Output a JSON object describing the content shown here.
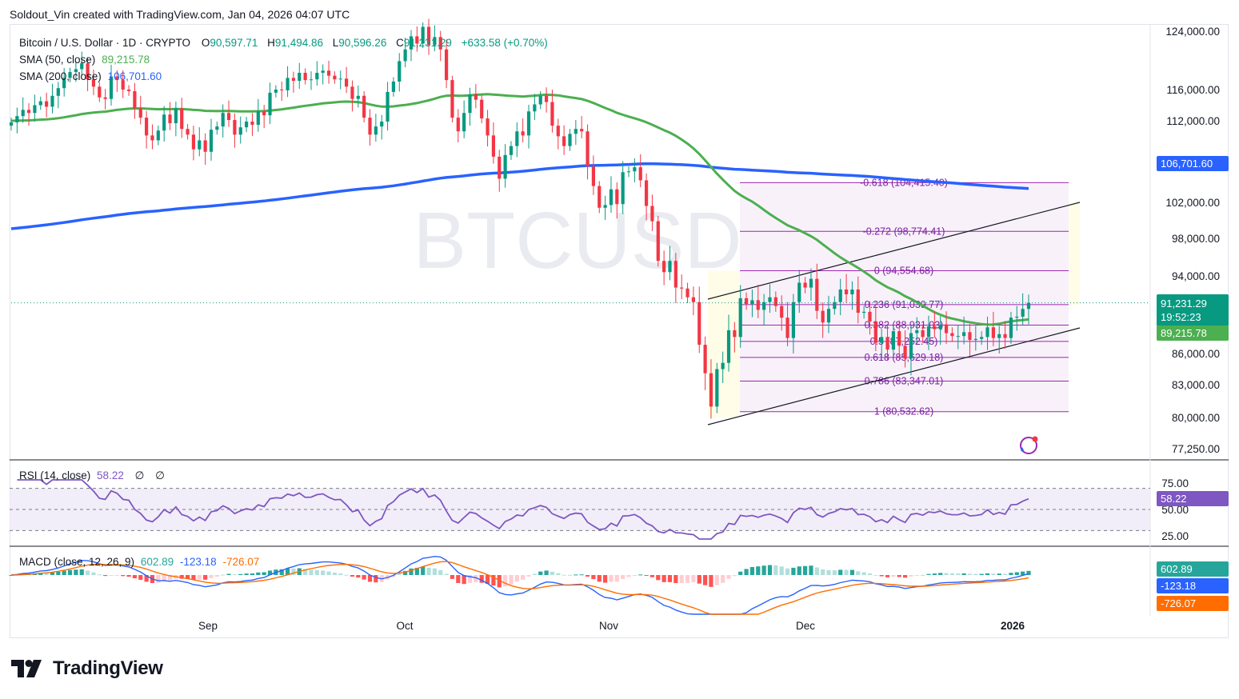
{
  "header": {
    "credit": "Soldout_Vin created with TradingView.com, Jan 04, 2026 04:07 UTC"
  },
  "footer": {
    "brand": "TradingView",
    "logo_icon": "tradingview-logo-icon"
  },
  "colors": {
    "up": "#089981",
    "down": "#f23645",
    "sma50": "#4caf50",
    "sma200": "#2962ff",
    "rsi": "#7e57c2",
    "macd": "#2962ff",
    "signal": "#ff6d00",
    "fib": "#9c27b0"
  },
  "symbol": {
    "watermark": "BTCUSD"
  },
  "legend": {
    "title": "Bitcoin / U.S. Dollar · 1D · CRYPTO",
    "o_label": "O",
    "o": "90,597.71",
    "h_label": "H",
    "h": "91,494.86",
    "l_label": "L",
    "l": "90,596.26",
    "c_label": "C",
    "c": "91,231.29",
    "change": "+633.58 (+0.70%)",
    "sma50_label": "SMA (50, close)",
    "sma50_value": "89,215.78",
    "sma200_label": "SMA (200, close)",
    "sma200_value": "106,701.60"
  },
  "rsi_legend": {
    "label": "RSI (14, close)",
    "value": "58.22",
    "extra1": "∅",
    "extra2": "∅"
  },
  "macd_legend": {
    "label": "MACD (close, 12, 26, 9)",
    "hist": "602.89",
    "macd": "-123.18",
    "signal": "-726.07"
  },
  "price_tags": {
    "sma200": "106,701.60",
    "last": "91,231.29",
    "countdown": "19:52:23",
    "sma50": "89,215.78",
    "rsi": "58.22",
    "macd_hist": "602.89",
    "macd": "-123.18",
    "signal": "-726.07"
  },
  "chart_data": {
    "type": "candlestick",
    "price_axis": [
      "124,000.00",
      "116,000.00",
      "112,000.00",
      "102,000.00",
      "98,000.00",
      "94,000.00",
      "86,000.00",
      "83,000.00",
      "80,000.00",
      "77,250.00"
    ],
    "price_axis_values": [
      124000,
      116000,
      112000,
      102000,
      98000,
      94000,
      86000,
      83000,
      80000,
      77250
    ],
    "rsi_axis": [
      "75.00",
      "50.00",
      "25.00"
    ],
    "time_axis": [
      "Sep",
      "Oct",
      "Nov",
      "Dec",
      "2026"
    ],
    "fib_levels": [
      {
        "label": "-0.618 (104,415.40)",
        "value": 104415.4
      },
      {
        "label": "-0.272 (98,774.41)",
        "value": 98774.41
      },
      {
        "label": "0 (94,554.68)",
        "value": 94554.68
      },
      {
        "label": "0.236 (91,039.77)",
        "value": 91039.77
      },
      {
        "label": "0.382 (88,931.03)",
        "value": 88931.03
      },
      {
        "label": "0.5 (87,252.45)",
        "value": 87252.45
      },
      {
        "label": "0.618 (85,629.18)",
        "value": 85629.18
      },
      {
        "label": "0.786 (83,347.01)",
        "value": 83347.01
      },
      {
        "label": "1 (80,532.62)",
        "value": 80532.62
      }
    ],
    "closes": [
      111800,
      112600,
      113400,
      113000,
      114000,
      114500,
      113800,
      115200,
      116200,
      117600,
      118400,
      118800,
      119600,
      117400,
      116400,
      115000,
      114800,
      117800,
      117300,
      116000,
      115800,
      113600,
      112400,
      110200,
      109600,
      110800,
      112800,
      111700,
      113600,
      111000,
      110300,
      108500,
      109600,
      108200,
      110900,
      111300,
      113000,
      112100,
      110300,
      111200,
      111900,
      111500,
      113200,
      112700,
      115600,
      116000,
      115900,
      117600,
      117200,
      118300,
      117300,
      117400,
      118300,
      118600,
      117900,
      117400,
      117500,
      116400,
      114800,
      115200,
      112400,
      110300,
      111300,
      111900,
      115700,
      117100,
      119900,
      121500,
      123300,
      122300,
      124600,
      122100,
      123200,
      121500,
      117300,
      112400,
      110700,
      113000,
      115400,
      114700,
      112300,
      110200,
      107600,
      104900,
      107800,
      108900,
      110700,
      110200,
      113200,
      114100,
      115200,
      114400,
      111400,
      110100,
      108900,
      110400,
      111000,
      110700,
      106400,
      104000,
      101400,
      101700,
      103600,
      101800,
      105700,
      105800,
      106300,
      104700,
      101600,
      99900,
      95600,
      94400,
      95600,
      92800,
      92700,
      91800,
      91300,
      86900,
      84100,
      81000,
      84500,
      85100,
      88400,
      87700,
      91700,
      91100,
      91500,
      90500,
      91300,
      91800,
      90900,
      89700,
      87600,
      91300,
      93300,
      92800,
      93700,
      90400,
      89200,
      90600,
      91300,
      92600,
      92100,
      92600,
      90200,
      90300,
      89300,
      87100,
      87700,
      86400,
      88300,
      86800,
      85500,
      88100,
      88400,
      87700,
      88800,
      88500,
      89000,
      88100,
      87800,
      87800,
      88200,
      87400,
      87500,
      87700,
      88700,
      87600,
      88000,
      87600,
      89700,
      89800,
      90600,
      91231
    ],
    "sma50_first": 112000,
    "sma200_first": 99000
  }
}
